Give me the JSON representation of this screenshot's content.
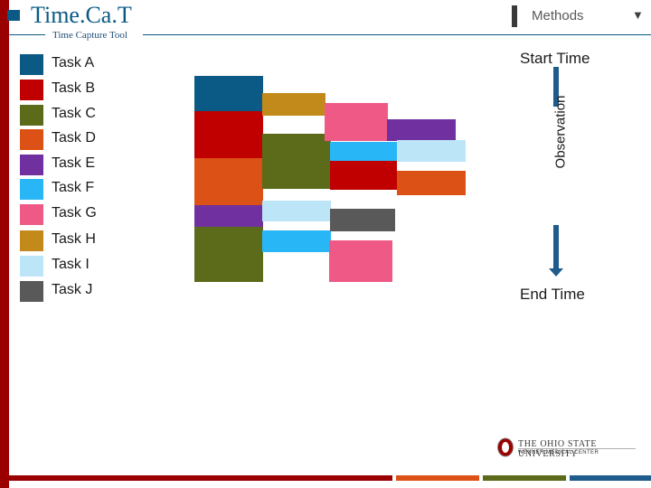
{
  "header": {
    "title": "Time.Ca.T",
    "subtitle": "Time Capture Tool",
    "methods_label": "Methods",
    "methods_arrow": "▼"
  },
  "colors": {
    "brand_red": "#9a0000",
    "brand_blue": "#0b5a85",
    "arrow_blue": "#1f5c8b"
  },
  "legend": [
    {
      "label": "Task A",
      "color": "#0b5a85"
    },
    {
      "label": "Task B",
      "color": "#c00000"
    },
    {
      "label": "Task C",
      "color": "#5b6b1a"
    },
    {
      "label": "Task D",
      "color": "#dc5216"
    },
    {
      "label": "Task E",
      "color": "#7030a0"
    },
    {
      "label": "Task F",
      "color": "#29b6f6"
    },
    {
      "label": "Task G",
      "color": "#ee5a85"
    },
    {
      "label": "Task H",
      "color": "#c28a1a"
    },
    {
      "label": "Task I",
      "color": "#bde5f8"
    },
    {
      "label": "Task J",
      "color": "#595959"
    }
  ],
  "observation": {
    "start_label": "Start Time",
    "axis_label": "Observation",
    "end_label": "End Time"
  },
  "timeline_columns": [
    [
      {
        "task": "Task A"
      },
      {
        "task": "Task B"
      },
      {
        "task": "Task D"
      },
      {
        "task": "Task E"
      },
      {
        "task": "Task C"
      }
    ],
    [
      {
        "task": "Task H"
      },
      {
        "task": "Task C"
      },
      {
        "task": "Task I"
      },
      {
        "task": "Task F"
      }
    ],
    [
      {
        "task": "Task G"
      },
      {
        "task": "Task F"
      },
      {
        "task": "Task B"
      },
      {
        "task": "Task J"
      },
      {
        "task": "Task G"
      }
    ],
    [
      {
        "task": "Task E"
      },
      {
        "task": "Task I"
      },
      {
        "task": "Task D"
      }
    ]
  ],
  "footer": {
    "university_name": "THE OHIO STATE UNIVERSITY",
    "center_name": "WEXNER MEDICAL CENTER",
    "bottom_colors": [
      "#9a0000",
      "#9a0000",
      "#dc5216",
      "#5b6b1a",
      "#1f5c8b"
    ]
  }
}
